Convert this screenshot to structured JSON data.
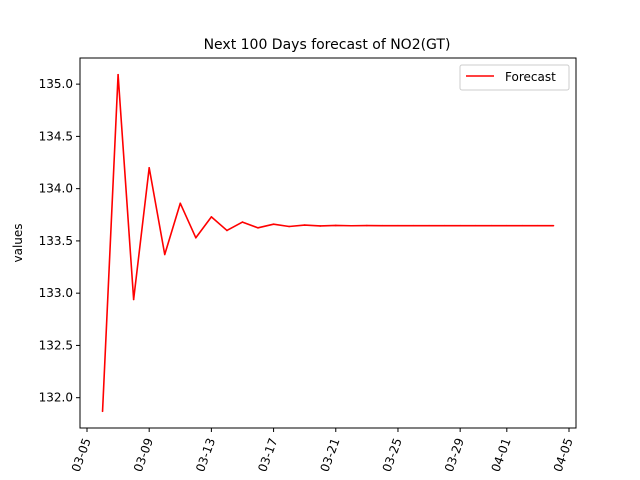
{
  "chart_data": {
    "type": "line",
    "title": "Next 100 Days forecast of NO2(GT)",
    "xlabel": "",
    "ylabel": "values",
    "x": [
      "03-06",
      "03-07",
      "03-08",
      "03-09",
      "03-10",
      "03-11",
      "03-12",
      "03-13",
      "03-14",
      "03-15",
      "03-16",
      "03-17",
      "03-18",
      "03-19",
      "03-20",
      "03-21",
      "03-22",
      "03-23",
      "03-24",
      "03-25",
      "03-26",
      "03-27",
      "03-28",
      "03-29",
      "03-30",
      "03-31",
      "04-01",
      "04-02",
      "04-03",
      "04-04"
    ],
    "series": [
      {
        "name": "Forecast",
        "color": "#ff0000",
        "values": [
          131.87,
          135.09,
          132.94,
          134.2,
          133.37,
          133.86,
          133.53,
          133.73,
          133.6,
          133.68,
          133.625,
          133.66,
          133.638,
          133.652,
          133.643,
          133.648,
          133.645,
          133.647,
          133.646,
          133.646,
          133.646,
          133.646,
          133.646,
          133.646,
          133.646,
          133.646,
          133.646,
          133.646,
          133.646,
          133.646
        ]
      }
    ],
    "xticks": [
      "03-05",
      "03-09",
      "03-13",
      "03-17",
      "03-21",
      "03-25",
      "03-29",
      "04-01",
      "04-05"
    ],
    "yticks": [
      "132.0",
      "132.5",
      "133.0",
      "133.5",
      "134.0",
      "134.5",
      "135.0"
    ],
    "ylim": [
      131.71,
      135.25
    ],
    "legend": {
      "position": "top-right"
    },
    "grid": false
  }
}
